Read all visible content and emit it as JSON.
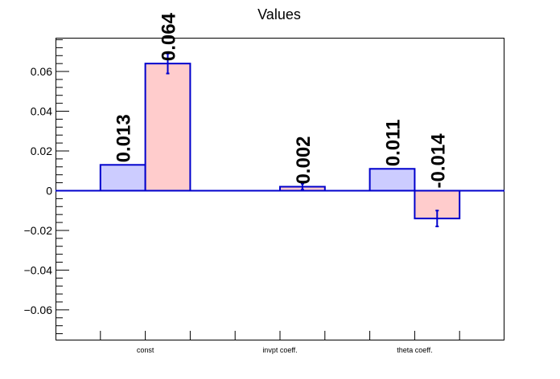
{
  "chart_data": {
    "type": "bar",
    "title": "Values",
    "xlabel": "",
    "ylabel": "",
    "ylim": [
      -0.075,
      0.077
    ],
    "yticks": [
      -0.06,
      -0.04,
      -0.02,
      0,
      0.02,
      0.04,
      0.06
    ],
    "ytick_labels": [
      "−0.06",
      "−0.04",
      "−0.02",
      "0",
      "0.02",
      "0.04",
      "0.06"
    ],
    "categories": [
      "const",
      "invpt coeff.",
      "theta coeff."
    ],
    "series": [
      {
        "values": [
          0.013,
          0.0,
          0.011
        ],
        "errors": [
          0,
          0,
          0
        ],
        "labels": [
          "0.013",
          "",
          "0.011"
        ],
        "fill": "#ccccff",
        "stroke": "#0000cc"
      },
      {
        "values": [
          0.064,
          0.002,
          -0.014
        ],
        "errors": [
          0.005,
          0.0015,
          0.004
        ],
        "labels": [
          "0.064",
          "0.002",
          "-0.014"
        ],
        "fill": "#ffcccc",
        "stroke": "#0000cc"
      }
    ],
    "grid": false,
    "legend": "none",
    "zero_line_color": "#0000cc",
    "error_bar_color": "#0000cc"
  }
}
